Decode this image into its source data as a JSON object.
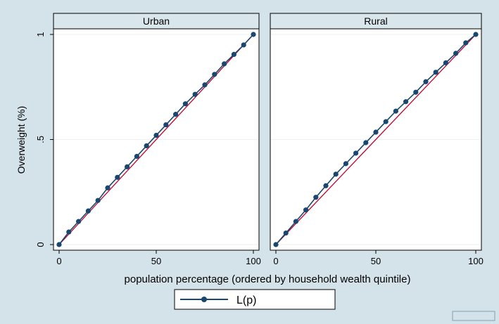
{
  "chart_data": {
    "type": "line",
    "ylabel": "Overweight (%)",
    "xlabel": "population percentage (ordered by household wealth quintile)",
    "xlim": [
      0,
      100
    ],
    "ylim": [
      0,
      1
    ],
    "xticks": [
      0,
      50,
      100
    ],
    "yticks": [
      0,
      0.5,
      1
    ],
    "xtick_labels": [
      "0",
      "50",
      "100"
    ],
    "ytick_labels": [
      "0",
      ".5",
      "1"
    ],
    "grid": true,
    "legend": {
      "position": "bottom",
      "entries": [
        "L(p)"
      ]
    },
    "colors": {
      "series": "#1a476f",
      "equality": "#c10534",
      "plot_bg": "#ffffff",
      "outer_bg": "#d4e3ea",
      "strip_bg": "#d9e6eb"
    },
    "panels": [
      {
        "title": "Urban",
        "series": [
          {
            "name": "L(p)",
            "x": [
              0,
              5,
              10,
              15,
              20,
              25,
              30,
              35,
              40,
              45,
              50,
              55,
              60,
              65,
              70,
              75,
              80,
              85,
              90,
              95,
              100
            ],
            "y": [
              0,
              0.06,
              0.11,
              0.16,
              0.21,
              0.27,
              0.32,
              0.37,
              0.42,
              0.47,
              0.52,
              0.57,
              0.62,
              0.67,
              0.715,
              0.76,
              0.81,
              0.86,
              0.905,
              0.95,
              1
            ]
          }
        ]
      },
      {
        "title": "Rural",
        "series": [
          {
            "name": "L(p)",
            "x": [
              0,
              5,
              10,
              15,
              20,
              25,
              30,
              35,
              40,
              45,
              50,
              55,
              60,
              65,
              70,
              75,
              80,
              85,
              90,
              95,
              100
            ],
            "y": [
              0,
              0.055,
              0.11,
              0.165,
              0.225,
              0.28,
              0.335,
              0.385,
              0.435,
              0.485,
              0.535,
              0.585,
              0.635,
              0.68,
              0.725,
              0.775,
              0.82,
              0.865,
              0.91,
              0.96,
              1
            ]
          }
        ]
      }
    ]
  }
}
